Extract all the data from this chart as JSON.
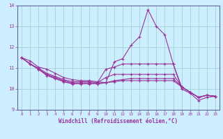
{
  "xlabel": "Windchill (Refroidissement éolien,°C)",
  "background_color": "#cceeff",
  "grid_color": "#99cccc",
  "line_color": "#993399",
  "spine_color": "#666699",
  "xlim": [
    -0.5,
    23.5
  ],
  "ylim": [
    9,
    14
  ],
  "yticks": [
    9,
    10,
    11,
    12,
    13,
    14
  ],
  "xticks": [
    0,
    1,
    2,
    3,
    4,
    5,
    6,
    7,
    8,
    9,
    10,
    11,
    12,
    13,
    14,
    15,
    16,
    17,
    18,
    19,
    20,
    21,
    22,
    23
  ],
  "series": [
    [
      11.5,
      11.35,
      11.05,
      10.95,
      10.75,
      10.55,
      10.45,
      10.4,
      10.4,
      10.35,
      10.3,
      11.3,
      11.45,
      12.1,
      12.5,
      13.8,
      13.0,
      12.6,
      11.2,
      10.0,
      9.8,
      9.45,
      9.6,
      9.65
    ],
    [
      11.5,
      11.2,
      11.0,
      10.75,
      10.6,
      10.45,
      10.35,
      10.35,
      10.35,
      10.3,
      10.95,
      11.05,
      11.2,
      11.2,
      11.2,
      11.2,
      11.2,
      11.2,
      11.2,
      10.1,
      9.85,
      9.6,
      9.7,
      9.65
    ],
    [
      11.5,
      11.2,
      10.95,
      10.7,
      10.55,
      10.4,
      10.3,
      10.3,
      10.3,
      10.3,
      10.55,
      10.7,
      10.7,
      10.7,
      10.7,
      10.7,
      10.7,
      10.7,
      10.7,
      10.1,
      9.85,
      9.6,
      9.7,
      9.65
    ],
    [
      11.5,
      11.2,
      10.95,
      10.65,
      10.5,
      10.35,
      10.25,
      10.25,
      10.25,
      10.25,
      10.3,
      10.4,
      10.45,
      10.5,
      10.5,
      10.5,
      10.5,
      10.5,
      10.5,
      10.1,
      9.85,
      9.6,
      9.7,
      9.65
    ],
    [
      11.5,
      11.2,
      10.95,
      10.65,
      10.5,
      10.35,
      10.25,
      10.25,
      10.25,
      10.25,
      10.3,
      10.35,
      10.4,
      10.4,
      10.4,
      10.4,
      10.4,
      10.4,
      10.4,
      10.1,
      9.85,
      9.6,
      9.7,
      9.65
    ]
  ]
}
